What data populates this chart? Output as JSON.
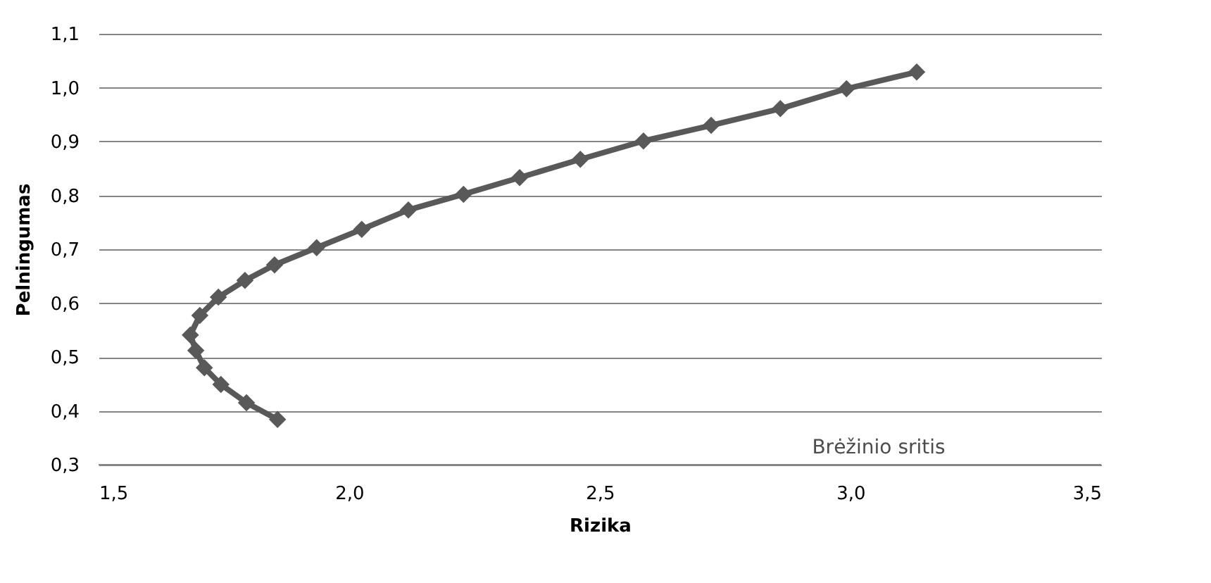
{
  "chart_data": {
    "type": "line",
    "xlabel": "Rizika",
    "ylabel": "Pelningumas",
    "series": [
      {
        "color": "#595959",
        "x": [
          1.857,
          1.795,
          1.744,
          1.711,
          1.694,
          1.683,
          1.702,
          1.739,
          1.792,
          1.851,
          1.935,
          2.025,
          2.118,
          2.228,
          2.34,
          2.461,
          2.587,
          2.722,
          2.86,
          2.992,
          3.132
        ],
        "values": [
          0.384,
          0.415,
          0.449,
          0.48,
          0.512,
          0.541,
          0.577,
          0.611,
          0.642,
          0.671,
          0.703,
          0.737,
          0.773,
          0.802,
          0.833,
          0.867,
          0.901,
          0.93,
          0.961,
          0.998,
          1.029
        ]
      }
    ],
    "xlim": [
      1.5,
      3.5
    ],
    "xticks": [
      {
        "value": 1.5,
        "label": "1,5"
      },
      {
        "value": 2.0,
        "label": "2,0"
      },
      {
        "value": 2.5,
        "label": "2,5"
      },
      {
        "value": 3.0,
        "label": "3,0"
      },
      {
        "value": 3.5,
        "label": "3,5"
      }
    ],
    "ylim": [
      0.3,
      1.1
    ],
    "yticks": [
      {
        "value": 0.3,
        "label": "0,3"
      },
      {
        "value": 0.4,
        "label": "0,4"
      },
      {
        "value": 0.5,
        "label": "0,5"
      },
      {
        "value": 0.6,
        "label": "0,6"
      },
      {
        "value": 0.7,
        "label": "0,7"
      },
      {
        "value": 0.8,
        "label": "0,8"
      },
      {
        "value": 0.9,
        "label": "0,9"
      },
      {
        "value": 1.0,
        "label": "1,0"
      },
      {
        "value": 1.1,
        "label": "1,1"
      }
    ],
    "grid": "y",
    "marker": "diamond",
    "line_style": "solid",
    "annotations": [
      "Brėžinio sritis"
    ]
  }
}
